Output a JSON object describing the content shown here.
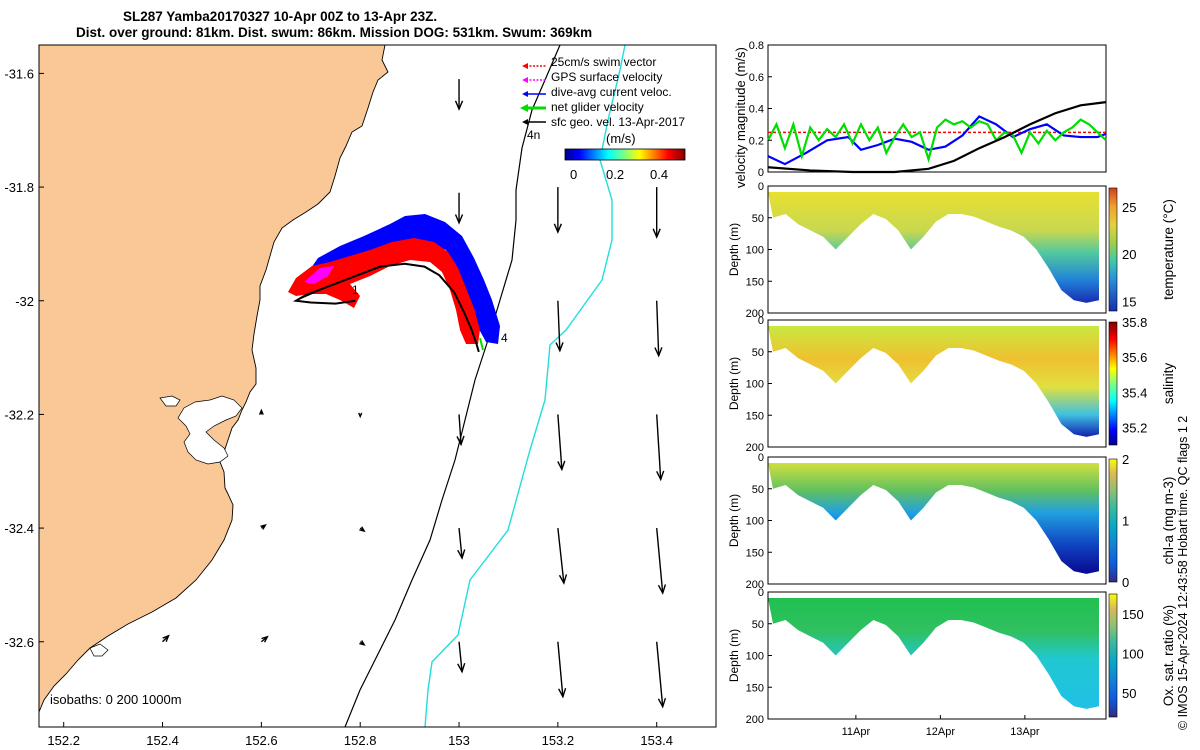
{
  "title_line1": "SL287 Yamba20170327 10-Apr 00Z to 13-Apr 23Z.",
  "title_line2": "Dist. over ground: 81km. Dist. swum: 86km. Mission DOG: 531km. Swum: 369km",
  "colors": {
    "land": "#FAC896",
    "swim_vector": "#FF0000",
    "gps_surface": "#FF00FF",
    "dive_avg_current": "#0000FF",
    "net_glider": "#00DD00",
    "sfc_geo": "#000000",
    "isobath_200": "#000000",
    "isobath_1000": "#22DDDD"
  },
  "map": {
    "legend": [
      {
        "label": "25cm/s swim vector",
        "color": "#FF0000",
        "style": "dotted-arrow"
      },
      {
        "label": "GPS surface velocity",
        "color": "#FF00FF",
        "style": "dotted-arrow"
      },
      {
        "label": "dive-avg current veloc.",
        "color": "#0000FF",
        "style": "arrow"
      },
      {
        "label": "net glider velocity",
        "color": "#00DD00",
        "style": "thick-arrow"
      },
      {
        "label": "sfc geo. vel. 13-Apr-2017",
        "color": "#000000",
        "style": "arrow"
      }
    ],
    "legend_4n": "4n",
    "colorbar_title": "(m/s)",
    "colorbar_ticks": [
      "0",
      "0.2",
      "0.4"
    ],
    "isobaths_label": "isobaths: 0   200  1000m",
    "day_labels": [
      {
        "text": "1"
      },
      {
        "text": "4"
      }
    ]
  },
  "chart_data": [
    {
      "type": "scatter",
      "name": "glider track map",
      "x_ticks": [
        "152.2",
        "152.4",
        "152.6",
        "152.8",
        "153",
        "153.2",
        "153.4"
      ],
      "y_ticks": [
        "-31.6",
        "-31.8",
        "-32",
        "-32.2",
        "-32.4",
        "-32.6"
      ],
      "xlim": [
        152.15,
        153.52
      ],
      "ylim": [
        -32.75,
        -31.55
      ],
      "track": [
        {
          "lon": 152.68,
          "lat": -31.995
        },
        {
          "lon": 152.72,
          "lat": -31.98
        },
        {
          "lon": 152.78,
          "lat": -31.96
        },
        {
          "lon": 152.84,
          "lat": -31.94
        },
        {
          "lon": 152.89,
          "lat": -31.935
        },
        {
          "lon": 152.93,
          "lat": -31.94
        },
        {
          "lon": 152.96,
          "lat": -31.955
        },
        {
          "lon": 152.99,
          "lat": -31.985
        },
        {
          "lon": 153.01,
          "lat": -32.02
        },
        {
          "lon": 153.025,
          "lat": -32.05
        },
        {
          "lon": 153.035,
          "lat": -32.075
        },
        {
          "lon": 153.04,
          "lat": -32.09
        }
      ],
      "return_track": [
        {
          "lon": 152.72,
          "lat": -31.98
        },
        {
          "lon": 152.69,
          "lat": -31.99
        },
        {
          "lon": 152.67,
          "lat": -32.0
        },
        {
          "lon": 152.7,
          "lat": -32.003
        },
        {
          "lon": 152.75,
          "lat": -32.005
        },
        {
          "lon": 152.79,
          "lat": -32.0
        }
      ],
      "sfc_geo_vectors": [
        {
          "lon": 153.0,
          "lat": -31.61,
          "u": 0.0,
          "v": -0.3
        },
        {
          "lon": 153.0,
          "lat": -31.81,
          "u": 0.0,
          "v": -0.3
        },
        {
          "lon": 153.2,
          "lat": -31.8,
          "u": 0.0,
          "v": -0.45
        },
        {
          "lon": 153.4,
          "lat": -31.8,
          "u": 0.0,
          "v": -0.5
        },
        {
          "lon": 153.2,
          "lat": -32.0,
          "u": 0.02,
          "v": -0.5
        },
        {
          "lon": 153.4,
          "lat": -32.0,
          "u": 0.02,
          "v": -0.55
        },
        {
          "lon": 153.0,
          "lat": -32.2,
          "u": 0.02,
          "v": -0.3
        },
        {
          "lon": 153.2,
          "lat": -32.2,
          "u": 0.04,
          "v": -0.55
        },
        {
          "lon": 153.4,
          "lat": -32.2,
          "u": 0.04,
          "v": -0.65
        },
        {
          "lon": 153.0,
          "lat": -32.4,
          "u": 0.03,
          "v": -0.3
        },
        {
          "lon": 153.2,
          "lat": -32.4,
          "u": 0.06,
          "v": -0.55
        },
        {
          "lon": 153.4,
          "lat": -32.4,
          "u": 0.06,
          "v": -0.65
        },
        {
          "lon": 153.0,
          "lat": -32.6,
          "u": 0.03,
          "v": -0.3
        },
        {
          "lon": 153.2,
          "lat": -32.6,
          "u": 0.05,
          "v": -0.55
        },
        {
          "lon": 153.4,
          "lat": -32.6,
          "u": 0.06,
          "v": -0.65
        },
        {
          "lon": 152.8,
          "lat": -32.4,
          "u": 0.04,
          "v": -0.03
        },
        {
          "lon": 152.8,
          "lat": -32.6,
          "u": 0.04,
          "v": -0.03
        },
        {
          "lon": 152.8,
          "lat": -32.2,
          "u": 0.0,
          "v": -0.02
        },
        {
          "lon": 152.6,
          "lat": -32.2,
          "u": 0.0,
          "v": 0.04
        },
        {
          "lon": 152.6,
          "lat": -32.4,
          "u": 0.04,
          "v": 0.03
        },
        {
          "lon": 152.6,
          "lat": -32.6,
          "u": 0.06,
          "v": 0.05
        },
        {
          "lon": 152.4,
          "lat": -32.6,
          "u": 0.06,
          "v": 0.06
        }
      ]
    },
    {
      "type": "line",
      "name": "velocity magnitude",
      "ylabel": "velocity magnitude (m/s)",
      "ylim": [
        0,
        0.8
      ],
      "y_ticks": [
        "0",
        "0.2",
        "0.4",
        "0.6",
        "0.8"
      ],
      "xlim": [
        0,
        4
      ],
      "series": [
        {
          "color": "#FF0000",
          "x": [
            0,
            4
          ],
          "y": [
            0.25,
            0.25
          ]
        },
        {
          "color": "#0000FF",
          "x": [
            0,
            0.2,
            0.45,
            0.7,
            0.95,
            1.1,
            1.3,
            1.5,
            1.7,
            1.9,
            2.1,
            2.3,
            2.5,
            2.7,
            2.9,
            3.1,
            3.3,
            3.5,
            3.7,
            3.9,
            4.0
          ],
          "y": [
            0.1,
            0.05,
            0.12,
            0.2,
            0.22,
            0.14,
            0.17,
            0.21,
            0.19,
            0.14,
            0.16,
            0.23,
            0.35,
            0.3,
            0.22,
            0.27,
            0.3,
            0.23,
            0.22,
            0.22,
            0.24
          ]
        },
        {
          "color": "#00DD00",
          "x": [
            0,
            0.1,
            0.2,
            0.3,
            0.4,
            0.5,
            0.6,
            0.7,
            0.8,
            0.9,
            1.0,
            1.1,
            1.2,
            1.3,
            1.4,
            1.5,
            1.6,
            1.7,
            1.8,
            1.9,
            2.0,
            2.1,
            2.2,
            2.3,
            2.4,
            2.5,
            2.6,
            2.7,
            2.8,
            2.9,
            3.0,
            3.1,
            3.2,
            3.3,
            3.4,
            3.5,
            3.6,
            3.7,
            3.8,
            3.9,
            4.0
          ],
          "y": [
            0.2,
            0.3,
            0.15,
            0.3,
            0.1,
            0.28,
            0.2,
            0.27,
            0.22,
            0.3,
            0.18,
            0.3,
            0.2,
            0.28,
            0.12,
            0.22,
            0.3,
            0.22,
            0.25,
            0.08,
            0.28,
            0.33,
            0.3,
            0.32,
            0.28,
            0.32,
            0.3,
            0.2,
            0.25,
            0.23,
            0.12,
            0.25,
            0.18,
            0.26,
            0.2,
            0.25,
            0.28,
            0.33,
            0.3,
            0.25,
            0.2
          ]
        },
        {
          "color": "#000000",
          "x": [
            0,
            0.5,
            1.0,
            1.5,
            1.9,
            2.2,
            2.5,
            2.8,
            3.1,
            3.4,
            3.7,
            4.0
          ],
          "y": [
            0.03,
            0.01,
            0.0,
            0.0,
            0.02,
            0.07,
            0.15,
            0.22,
            0.3,
            0.37,
            0.42,
            0.44
          ]
        }
      ]
    },
    {
      "type": "heatmap",
      "name": "temperature section",
      "ylabel": "Depth (m)",
      "colorbar_label": "temperature (°C)",
      "colorbar_ticks": [
        "15",
        "20",
        "25"
      ],
      "clim": [
        14,
        27
      ],
      "ylim": [
        0,
        200
      ],
      "y_ticks": [
        "0",
        "50",
        "100",
        "150",
        "200"
      ]
    },
    {
      "type": "heatmap",
      "name": "salinity section",
      "ylabel": "Depth (m)",
      "colorbar_label": "salinity",
      "colorbar_ticks": [
        "35.2",
        "35.4",
        "35.6",
        "35.8"
      ],
      "clim": [
        35.1,
        35.8
      ],
      "ylim": [
        0,
        200
      ],
      "y_ticks": [
        "0",
        "50",
        "100",
        "150",
        "200"
      ]
    },
    {
      "type": "heatmap",
      "name": "chl-a section",
      "ylabel": "Depth (m)",
      "colorbar_label": "chl-a (mg m-3)",
      "colorbar_ticks": [
        "0",
        "1",
        "2"
      ],
      "clim": [
        0,
        2
      ],
      "ylim": [
        0,
        200
      ],
      "y_ticks": [
        "0",
        "50",
        "100",
        "150",
        "200"
      ]
    },
    {
      "type": "heatmap",
      "name": "oxygen section",
      "ylabel": "Depth (m)",
      "colorbar_label": "Ox. sat. ratio (%)",
      "colorbar_ticks": [
        "50",
        "100",
        "150"
      ],
      "clim": [
        20,
        175
      ],
      "ylim": [
        0,
        200
      ],
      "y_ticks": [
        "0",
        "50",
        "100",
        "150",
        "200"
      ],
      "x_ticks": [
        "11Apr",
        "12Apr",
        "13Apr"
      ]
    }
  ],
  "footer_label": "© IMOS 15-Apr-2024 12:43:58 Hobart time. QC flags 1  2"
}
